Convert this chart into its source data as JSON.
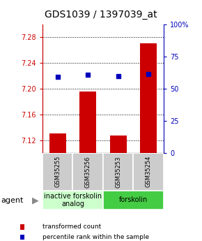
{
  "title": "GDS1039 / 1397039_at",
  "samples": [
    "GSM35255",
    "GSM35256",
    "GSM35253",
    "GSM35254"
  ],
  "bar_values": [
    7.13,
    7.195,
    7.127,
    7.27
  ],
  "dot_values": [
    7.218,
    7.221,
    7.219,
    7.222
  ],
  "ylim_left": [
    7.1,
    7.3
  ],
  "ylim_right": [
    0,
    100
  ],
  "yticks_left": [
    7.12,
    7.16,
    7.2,
    7.24,
    7.28
  ],
  "yticks_right": [
    0,
    25,
    50,
    75,
    100
  ],
  "ytick_labels_right": [
    "0",
    "25",
    "50",
    "75",
    "100%"
  ],
  "bar_color": "#cc0000",
  "dot_color": "#0000bb",
  "groups": [
    {
      "label": "inactive forskolin\nanalog",
      "color": "#ccffcc",
      "start": 0,
      "end": 2
    },
    {
      "label": "forskolin",
      "color": "#44cc44",
      "start": 2,
      "end": 4
    }
  ],
  "agent_label": "agent",
  "legend_items": [
    {
      "color": "#cc0000",
      "label": "transformed count"
    },
    {
      "color": "#0000bb",
      "label": "percentile rank within the sample"
    }
  ],
  "bar_baseline": 7.1,
  "title_fontsize": 10,
  "tick_fontsize": 7,
  "sample_fontsize": 6,
  "group_fontsize": 7,
  "legend_fontsize": 6.5,
  "agent_fontsize": 8
}
